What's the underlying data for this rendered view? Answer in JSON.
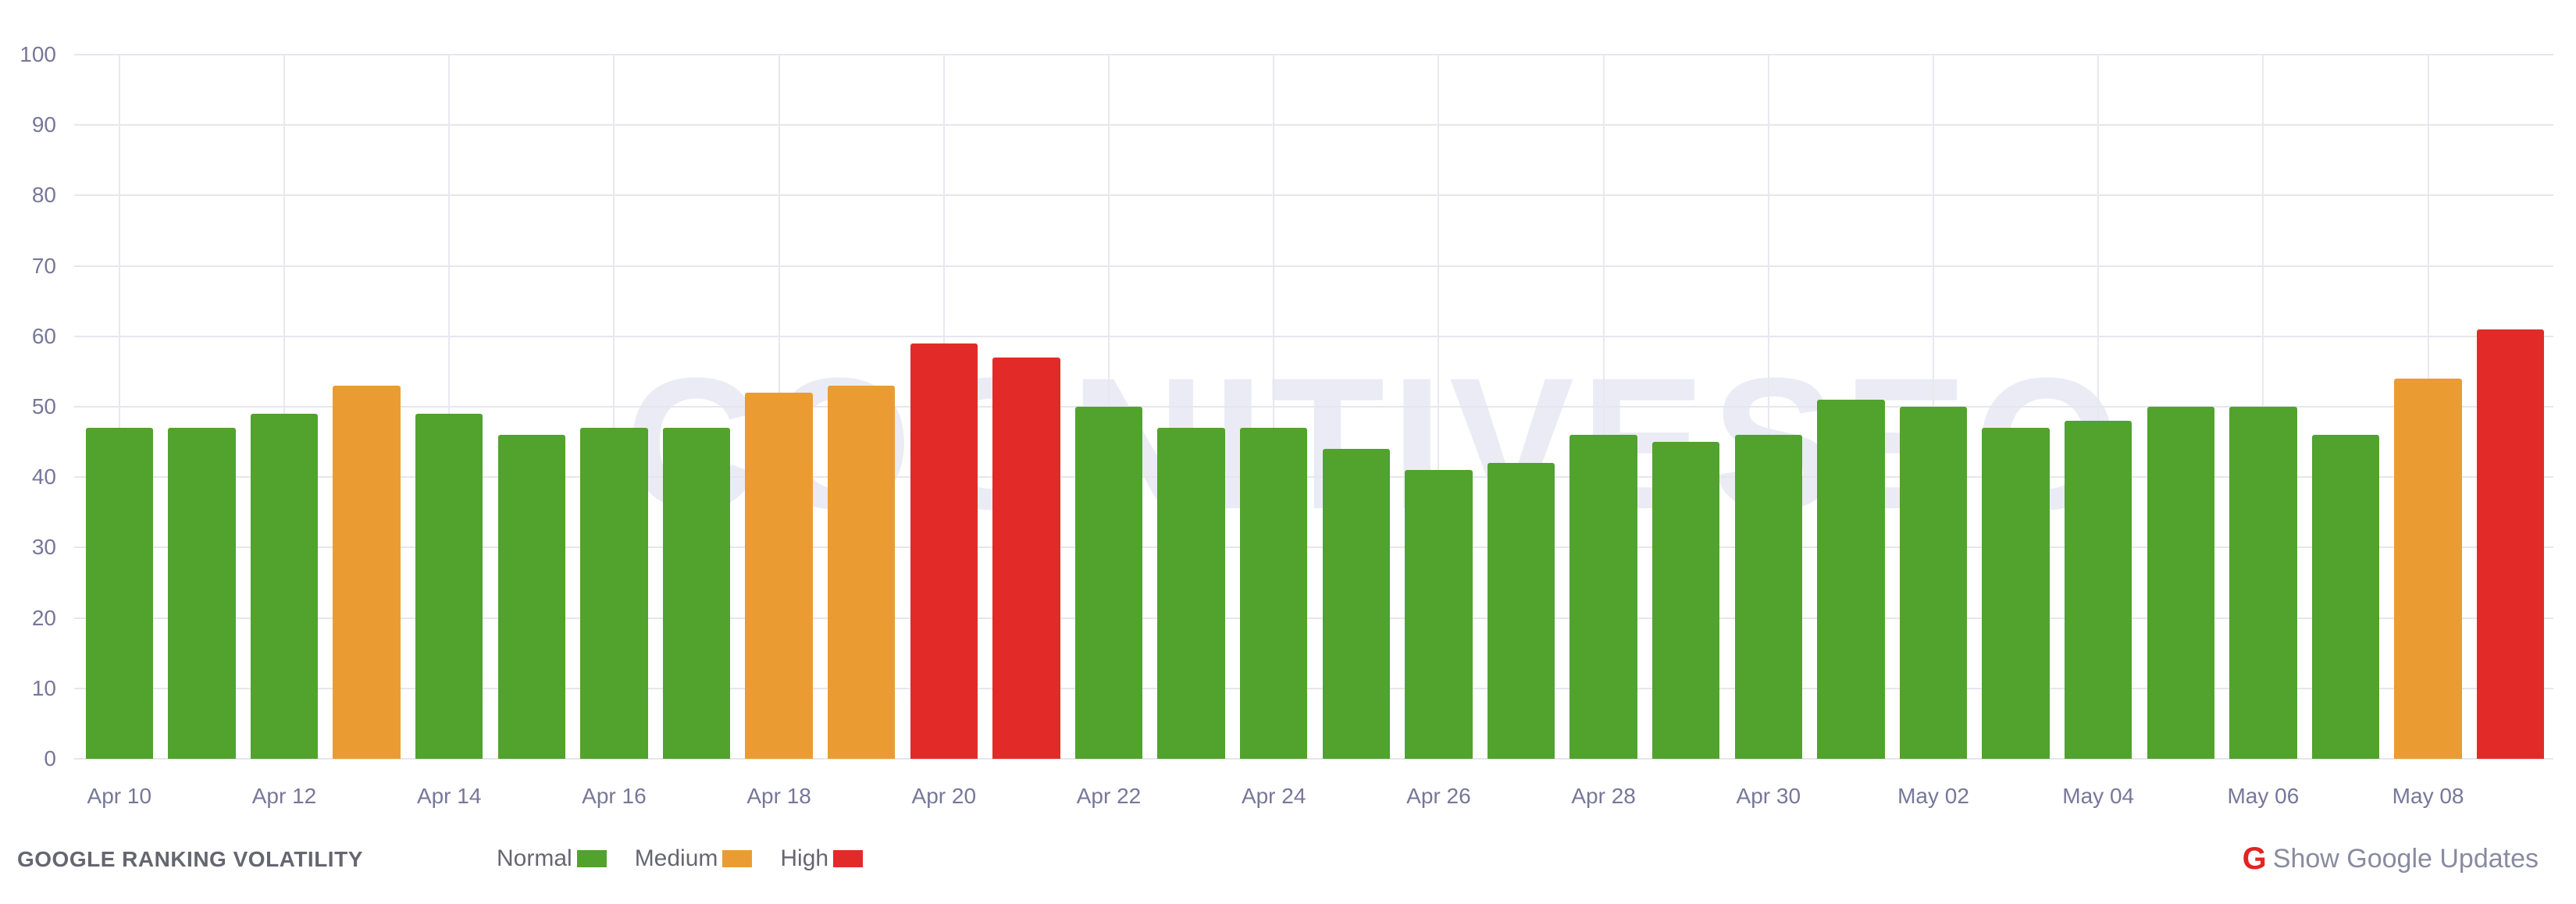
{
  "chart_data": {
    "type": "bar",
    "title": "GOOGLE RANKING VOLATILITY",
    "xlabel": "",
    "ylabel": "",
    "ylim": [
      0,
      100
    ],
    "yticks": [
      0,
      10,
      20,
      30,
      40,
      50,
      60,
      70,
      80,
      90,
      100
    ],
    "grid": true,
    "legend_position": "bottom",
    "categories": [
      "Apr 10",
      "Apr 11",
      "Apr 12",
      "Apr 13",
      "Apr 14",
      "Apr 15",
      "Apr 16",
      "Apr 17",
      "Apr 18",
      "Apr 19",
      "Apr 20",
      "Apr 21",
      "Apr 22",
      "Apr 23",
      "Apr 24",
      "Apr 25",
      "Apr 26",
      "Apr 27",
      "Apr 28",
      "Apr 29",
      "Apr 30",
      "May 01",
      "May 02",
      "May 03",
      "May 04",
      "May 05",
      "May 06",
      "May 07",
      "May 08",
      "May 09"
    ],
    "x_tick_labels": [
      "Apr 10",
      "Apr 12",
      "Apr 14",
      "Apr 16",
      "Apr 18",
      "Apr 20",
      "Apr 22",
      "Apr 24",
      "Apr 26",
      "Apr 28",
      "Apr 30",
      "May 02",
      "May 04",
      "May 06",
      "May 08"
    ],
    "values": [
      47,
      47,
      49,
      53,
      49,
      46,
      47,
      47,
      52,
      53,
      59,
      57,
      50,
      47,
      47,
      44,
      41,
      42,
      46,
      45,
      46,
      51,
      50,
      47,
      48,
      50,
      50,
      46,
      54,
      61
    ],
    "levels": [
      "normal",
      "normal",
      "normal",
      "medium",
      "normal",
      "normal",
      "normal",
      "normal",
      "medium",
      "medium",
      "high",
      "high",
      "normal",
      "normal",
      "normal",
      "normal",
      "normal",
      "normal",
      "normal",
      "normal",
      "normal",
      "normal",
      "normal",
      "normal",
      "normal",
      "normal",
      "normal",
      "normal",
      "medium",
      "high"
    ],
    "legend": [
      {
        "key": "normal",
        "label": "Normal",
        "color": "#52a22e"
      },
      {
        "key": "medium",
        "label": "Medium",
        "color": "#ea9c33"
      },
      {
        "key": "high",
        "label": "High",
        "color": "#e22b29"
      }
    ]
  },
  "watermark": "COGNITIVESEO",
  "footer": {
    "title": "GOOGLE RANKING VOLATILITY",
    "updates_label": "Show Google Updates",
    "updates_icon": "google-g-icon",
    "updates_icon_glyph": "G"
  }
}
